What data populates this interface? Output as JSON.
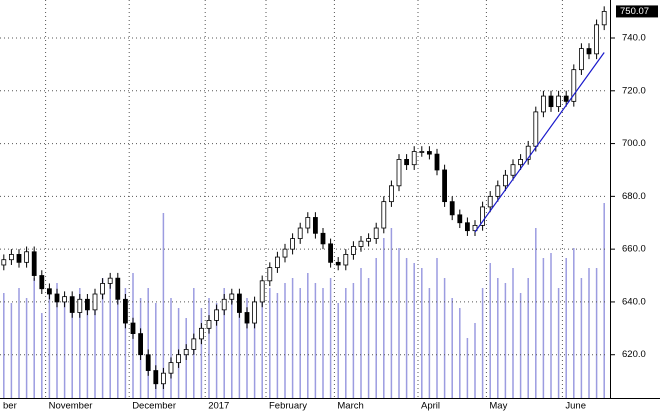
{
  "chart_data": {
    "type": "candlestick",
    "categories": [
      "ber",
      null,
      null,
      null,
      null,
      null,
      "November",
      null,
      null,
      null,
      null,
      null,
      null,
      null,
      null,
      null,
      null,
      "December",
      null,
      null,
      null,
      null,
      null,
      null,
      null,
      null,
      null,
      "2017",
      null,
      null,
      null,
      null,
      null,
      null,
      null,
      "February",
      null,
      null,
      null,
      null,
      null,
      null,
      null,
      null,
      "March",
      null,
      null,
      null,
      null,
      null,
      null,
      null,
      null,
      null,
      null,
      "April",
      null,
      null,
      null,
      null,
      null,
      null,
      null,
      null,
      "May",
      null,
      null,
      null,
      null,
      null,
      null,
      null,
      null,
      null,
      "June",
      null,
      null,
      null,
      null,
      null
    ],
    "open": [
      654,
      656,
      658,
      655,
      659,
      650,
      645,
      643,
      640,
      642,
      636,
      641,
      637,
      643,
      647,
      649,
      641,
      632,
      628,
      620,
      614,
      609,
      613,
      617,
      620,
      622,
      626,
      630,
      633,
      637,
      641,
      643,
      636,
      632,
      640,
      648,
      653,
      657,
      660,
      664,
      668,
      672,
      666,
      662,
      655,
      654,
      658,
      661,
      663,
      664,
      668,
      678,
      684,
      694,
      692,
      697,
      697,
      696,
      690,
      678,
      673,
      670,
      667,
      669,
      676,
      680,
      684,
      688,
      692,
      694,
      699,
      712,
      718,
      714,
      718,
      716,
      728,
      736,
      734,
      745
    ],
    "high": [
      658,
      660,
      660,
      661,
      661,
      652,
      647,
      645,
      644,
      644,
      643,
      643,
      645,
      649,
      651,
      651,
      643,
      634,
      630,
      622,
      616,
      615,
      619,
      622,
      624,
      628,
      632,
      635,
      639,
      643,
      645,
      645,
      638,
      642,
      650,
      655,
      659,
      662,
      666,
      670,
      674,
      674,
      668,
      664,
      657,
      660,
      663,
      665,
      666,
      670,
      680,
      686,
      696,
      696,
      699,
      699,
      699,
      698,
      692,
      680,
      675,
      672,
      671,
      678,
      682,
      686,
      690,
      694,
      696,
      701,
      714,
      720,
      720,
      720,
      720,
      730,
      738,
      738,
      747,
      752
    ],
    "low": [
      652,
      654,
      653,
      653,
      648,
      643,
      641,
      638,
      638,
      634,
      634,
      635,
      635,
      641,
      645,
      639,
      630,
      626,
      618,
      612,
      607,
      607,
      611,
      615,
      618,
      620,
      624,
      628,
      631,
      635,
      639,
      634,
      630,
      630,
      638,
      646,
      651,
      655,
      658,
      662,
      666,
      664,
      660,
      653,
      652,
      652,
      656,
      659,
      661,
      662,
      666,
      676,
      682,
      690,
      690,
      695,
      694,
      688,
      676,
      671,
      668,
      665,
      665,
      667,
      674,
      678,
      682,
      686,
      690,
      692,
      697,
      710,
      712,
      712,
      714,
      714,
      726,
      732,
      732,
      743
    ],
    "close": [
      656,
      658,
      655,
      659,
      650,
      645,
      643,
      640,
      642,
      636,
      641,
      637,
      643,
      647,
      649,
      641,
      632,
      628,
      620,
      614,
      609,
      613,
      617,
      620,
      622,
      626,
      630,
      633,
      637,
      641,
      643,
      636,
      632,
      640,
      648,
      653,
      657,
      660,
      664,
      668,
      672,
      666,
      662,
      655,
      654,
      658,
      661,
      663,
      664,
      668,
      678,
      684,
      694,
      692,
      697,
      697,
      696,
      690,
      678,
      673,
      670,
      667,
      669,
      676,
      680,
      684,
      688,
      692,
      694,
      699,
      712,
      718,
      714,
      718,
      716,
      728,
      736,
      734,
      745,
      750.07
    ],
    "volume": [
      105,
      95,
      110,
      100,
      120,
      85,
      105,
      115,
      100,
      90,
      110,
      95,
      100,
      120,
      115,
      105,
      110,
      125,
      100,
      110,
      95,
      185,
      100,
      90,
      80,
      110,
      90,
      100,
      95,
      110,
      105,
      95,
      100,
      90,
      100,
      110,
      105,
      115,
      120,
      110,
      125,
      115,
      110,
      120,
      95,
      110,
      115,
      130,
      120,
      140,
      160,
      170,
      150,
      140,
      135,
      130,
      110,
      140,
      120,
      100,
      90,
      60,
      75,
      110,
      135,
      120,
      115,
      130,
      105,
      120,
      170,
      140,
      145,
      110,
      140,
      150,
      120,
      130,
      130,
      195
    ],
    "candle_color": "#000000",
    "volume_color": "#9c9ce0",
    "trendline": {
      "x": [
        62,
        79
      ],
      "values": [
        666.5,
        734.5
      ],
      "color": "#1a1acc"
    },
    "last_value": 750.07,
    "ylim": [
      603.6,
      754.4
    ],
    "yticks": [
      {
        "value": 620,
        "label": "620.0"
      },
      {
        "value": 640,
        "label": "640.0"
      },
      {
        "value": 660,
        "label": "660.0"
      },
      {
        "value": 680,
        "label": "680.0"
      },
      {
        "value": 700,
        "label": "700.0"
      },
      {
        "value": 720,
        "label": "720.0"
      },
      {
        "value": 740,
        "label": "740.0"
      }
    ],
    "grid": true
  }
}
